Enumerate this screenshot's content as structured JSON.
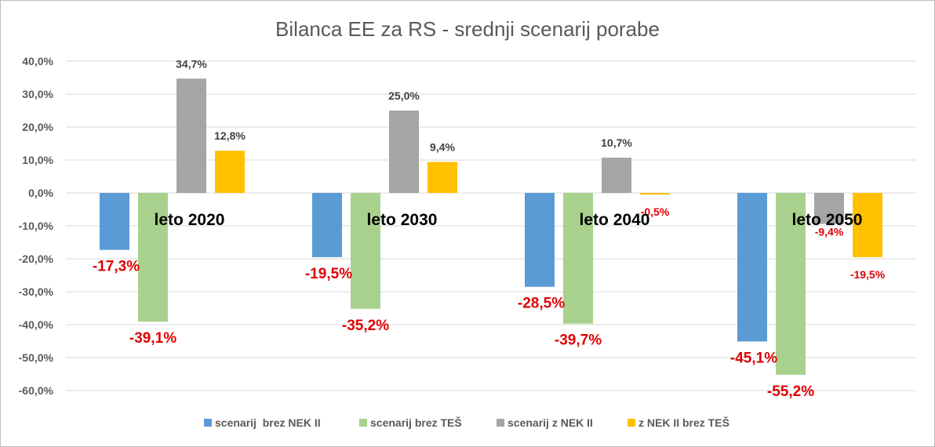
{
  "chart_data": {
    "type": "bar",
    "title": "Bilanca EE za RS - srednji scenarij porabe",
    "categories": [
      "leto 2020",
      "leto 2030",
      "leto 2040",
      "leto 2050"
    ],
    "ylim": [
      -60,
      40
    ],
    "y_ticks": [
      "40,0%",
      "30,0%",
      "20,0%",
      "10,0%",
      "0,0%",
      "-10,0%",
      "-20,0%",
      "-30,0%",
      "-40,0%",
      "-50,0%",
      "-60,0%"
    ],
    "grid": true,
    "legend_position": "bottom",
    "series": [
      {
        "name": "scenarij  brez NEK II",
        "color": "#5b9bd5",
        "values": [
          -17.3,
          -19.5,
          -28.5,
          -45.1
        ],
        "labels": [
          "-17,3%",
          "-19,5%",
          "-28,5%",
          "-45,1%"
        ]
      },
      {
        "name": "scenarij brez TEŠ",
        "color": "#a9d18e",
        "values": [
          -39.1,
          -35.2,
          -39.7,
          -55.2
        ],
        "labels": [
          "-39,1%",
          "-35,2%",
          "-39,7%",
          "-55,2%"
        ]
      },
      {
        "name": "scenarij z NEK II",
        "color": "#a5a5a5",
        "values": [
          34.7,
          25.0,
          10.7,
          -9.4
        ],
        "labels": [
          "34,7%",
          "25,0%",
          "10,7%",
          "-9,4%"
        ]
      },
      {
        "name": "z NEK II brez TEŠ",
        "color": "#ffc000",
        "values": [
          12.8,
          9.4,
          -0.5,
          -19.5
        ],
        "labels": [
          "12,8%",
          "9,4%",
          "-0,5%",
          "-19,5%"
        ]
      }
    ]
  }
}
